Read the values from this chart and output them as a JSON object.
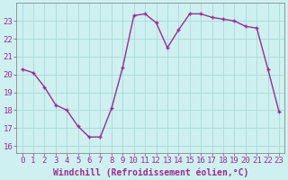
{
  "x": [
    0,
    1,
    2,
    3,
    4,
    5,
    6,
    7,
    8,
    9,
    10,
    11,
    12,
    13,
    14,
    15,
    16,
    17,
    18,
    19,
    20,
    21,
    22,
    23
  ],
  "y": [
    20.3,
    20.1,
    19.3,
    18.3,
    18.0,
    17.1,
    16.5,
    16.5,
    18.1,
    20.4,
    23.3,
    23.4,
    22.9,
    21.5,
    22.5,
    23.4,
    23.4,
    23.2,
    23.1,
    23.0,
    22.7,
    22.6,
    20.3,
    17.9
  ],
  "line_color": "#9b2d8e",
  "marker": "+",
  "bg_color": "#cef0f0",
  "grid_color": "#aadada",
  "xlabel": "Windchill (Refroidissement éolien,°C)",
  "ylim": [
    15.6,
    24.0
  ],
  "yticks": [
    16,
    17,
    18,
    19,
    20,
    21,
    22,
    23
  ],
  "xticks": [
    0,
    1,
    2,
    3,
    4,
    5,
    6,
    7,
    8,
    9,
    10,
    11,
    12,
    13,
    14,
    15,
    16,
    17,
    18,
    19,
    20,
    21,
    22,
    23
  ],
  "tick_color": "#9b2d8e",
  "label_color": "#9b2d8e",
  "font_size": 6.5,
  "xlabel_font_size": 7.0,
  "linewidth": 1.0,
  "markersize": 3.5,
  "markeredgewidth": 1.0
}
